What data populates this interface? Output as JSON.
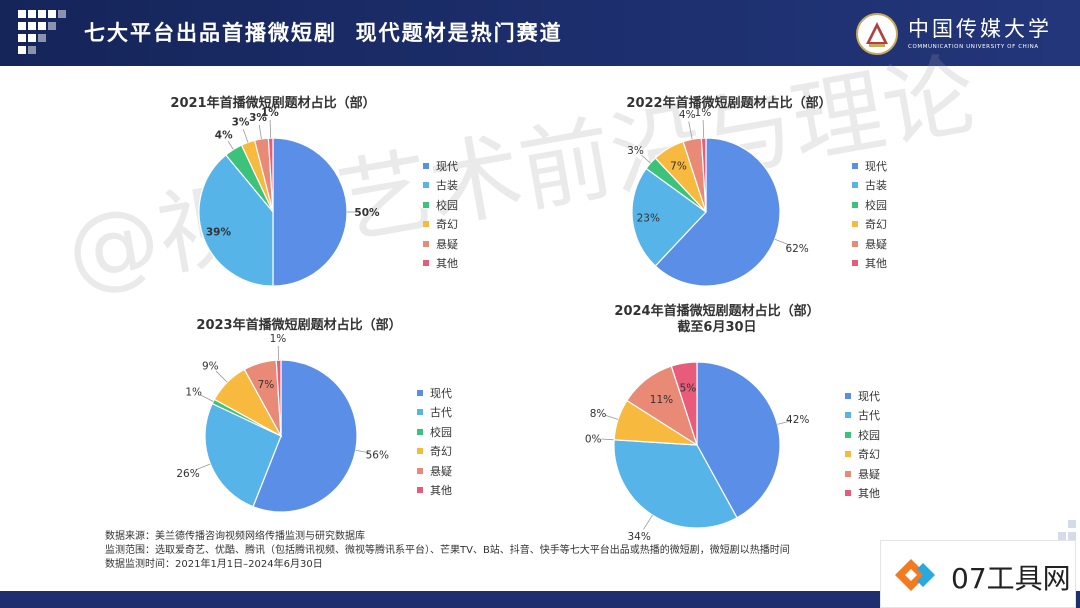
{
  "header": {
    "title": "七大平台出品首播微短剧  现代题材是热门赛道"
  },
  "university": {
    "name_cn": "中国传媒大学",
    "name_en": "COMMUNICATION UNIVERSITY OF CHINA"
  },
  "watermark_text": "@视听艺术前沿与理论",
  "chart_data": [
    {
      "type": "pie",
      "title": "2021年首播微短剧题材占比（部）",
      "categories": [
        "现代",
        "古装",
        "校园",
        "奇幻",
        "悬疑",
        "其他"
      ],
      "values": [
        50,
        39,
        4,
        3,
        3,
        1
      ],
      "labels": [
        "50%",
        "39%",
        "4%",
        "3%",
        "3%",
        "1%"
      ],
      "colors": [
        "#5b8ee6",
        "#56b4e9",
        "#3cc27a",
        "#f7b93e",
        "#e88a76",
        "#e85b7a"
      ]
    },
    {
      "type": "pie",
      "title": "2022年首播微短剧题材占比（部）",
      "categories": [
        "现代",
        "古装",
        "校园",
        "奇幻",
        "悬疑",
        "其他"
      ],
      "values": [
        62,
        23,
        3,
        7,
        4,
        1
      ],
      "labels": [
        "62%",
        "23%",
        "3%",
        "7%",
        "4%",
        "1%"
      ],
      "colors": [
        "#5b8ee6",
        "#56b4e9",
        "#3cc27a",
        "#f7b93e",
        "#e88a76",
        "#e85b7a"
      ]
    },
    {
      "type": "pie",
      "title": "2023年首播微短剧题材占比（部）",
      "categories": [
        "现代",
        "古代",
        "校园",
        "奇幻",
        "悬疑",
        "其他"
      ],
      "values": [
        56,
        26,
        1,
        9,
        7,
        1
      ],
      "labels": [
        "56%",
        "26%",
        "1%",
        "9%",
        "7%",
        "1%"
      ],
      "colors": [
        "#5b8ee6",
        "#56b4e9",
        "#3cc27a",
        "#f7b93e",
        "#e88a76",
        "#e85b7a"
      ]
    },
    {
      "type": "pie",
      "title": "2024年首播微短剧题材占比（部）",
      "subtitle": "截至6月30日",
      "categories": [
        "现代",
        "古代",
        "校园",
        "奇幻",
        "悬疑",
        "其他"
      ],
      "values": [
        42,
        34,
        0,
        8,
        11,
        5
      ],
      "labels": [
        "42%",
        "34%",
        "0%",
        "8%",
        "11%",
        "5%"
      ],
      "colors": [
        "#5b8ee6",
        "#56b4e9",
        "#3cc27a",
        "#f7b93e",
        "#e88a76",
        "#e85b7a"
      ]
    }
  ],
  "source": {
    "line1": "数据来源：美兰德传播咨询视频网络传播监测与研究数据库",
    "line2": "监测范围：选取爱奇艺、优酷、腾讯（包括腾讯视频、微视等腾讯系平台）、芒果TV、B站、抖音、快手等七大平台出品或热播的微短剧，微短剧以热播时间",
    "line3": "数据监测时间：2021年1月1日–2024年6月30日"
  },
  "badge": {
    "text": "07工具网"
  }
}
